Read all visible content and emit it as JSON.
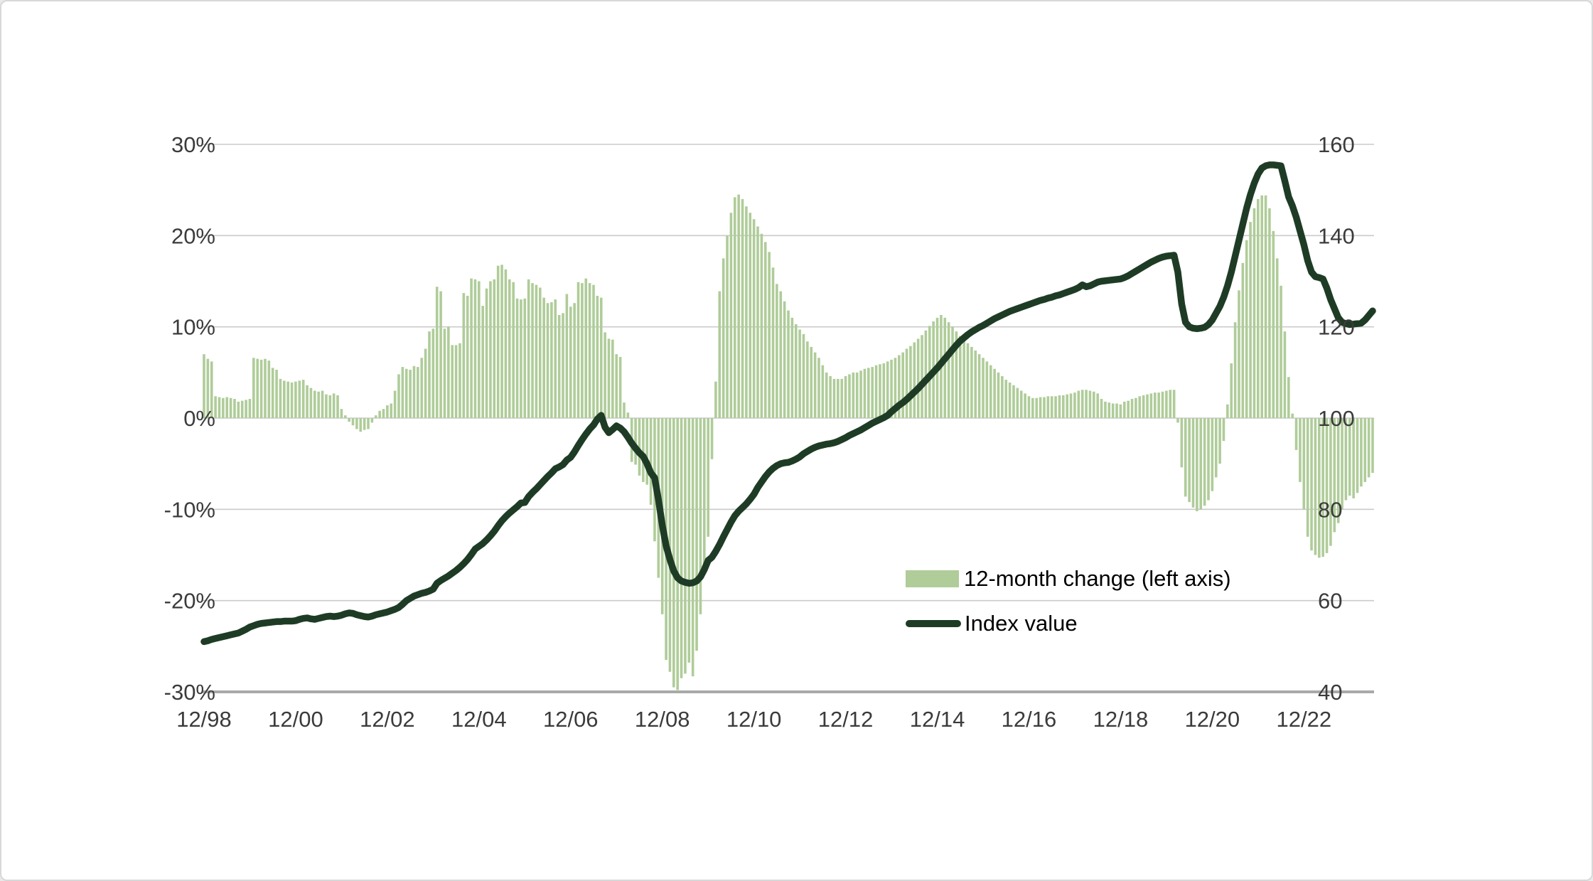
{
  "chart_data": {
    "type": "combo",
    "title": "",
    "x_axis": {
      "frequency": "monthly",
      "start": "1998-12",
      "end": "2024-06",
      "tick_labels": [
        "12/98",
        "12/00",
        "12/02",
        "12/04",
        "12/06",
        "12/08",
        "12/10",
        "12/12",
        "12/14",
        "12/16",
        "12/18",
        "12/20",
        "12/22"
      ]
    },
    "left_axis": {
      "unit": "percent",
      "min": -30,
      "max": 30,
      "tick_labels": [
        "30%",
        "20%",
        "10%",
        "0%",
        "-10%",
        "-20%",
        "-30%"
      ],
      "tick_values": [
        30,
        20,
        10,
        0,
        -10,
        -20,
        -30
      ]
    },
    "right_axis": {
      "unit": "index",
      "min": 40,
      "max": 160,
      "tick_labels": [
        "160",
        "140",
        "120",
        "100",
        "80",
        "60",
        "40"
      ],
      "tick_values": [
        160,
        140,
        120,
        100,
        80,
        60,
        40
      ]
    },
    "grid": "horizontal",
    "legend_position": "inside-lower-right",
    "colors": {
      "bars": "#afcc99",
      "line": "#1e3c25",
      "axis_text": "#3b3b3b",
      "gridline": "#cbcbcb",
      "baseline": "#a9a9a9",
      "background": "#ffffff"
    },
    "series": [
      {
        "name": "12-month change (left axis)",
        "type": "bar",
        "axis": "left",
        "color": "#afcc99",
        "values": [
          7.0,
          6.5,
          6.2,
          2.4,
          2.3,
          2.2,
          2.3,
          2.2,
          2.1,
          1.8,
          1.9,
          2.0,
          2.1,
          6.6,
          6.5,
          6.4,
          6.5,
          6.3,
          5.5,
          5.3,
          4.3,
          4.1,
          4.0,
          3.9,
          4.0,
          4.1,
          4.2,
          3.6,
          3.3,
          3.0,
          2.9,
          3.0,
          2.6,
          2.5,
          2.7,
          2.5,
          1.0,
          0.3,
          -0.4,
          -0.8,
          -1.2,
          -1.5,
          -1.3,
          -1.2,
          -0.5,
          0.3,
          0.8,
          1.0,
          1.4,
          1.6,
          3.0,
          4.8,
          5.6,
          5.4,
          5.3,
          5.7,
          5.6,
          6.6,
          7.6,
          9.5,
          9.8,
          14.4,
          13.9,
          9.8,
          10.0,
          8.0,
          8.0,
          8.2,
          13.7,
          13.4,
          15.3,
          15.2,
          15.0,
          12.3,
          14.2,
          15.0,
          15.2,
          16.7,
          16.8,
          16.3,
          15.2,
          14.9,
          13.1,
          13.0,
          13.1,
          15.2,
          14.8,
          14.6,
          14.3,
          13.2,
          12.6,
          12.7,
          13.0,
          11.3,
          11.5,
          13.6,
          12.2,
          12.6,
          14.9,
          14.8,
          15.3,
          14.8,
          14.6,
          13.4,
          13.2,
          9.4,
          8.7,
          8.6,
          7.0,
          6.7,
          1.7,
          0.6,
          -4.8,
          -5.1,
          -6.3,
          -7.0,
          -7.3,
          -9.5,
          -13.5,
          -17.5,
          -21.5,
          -26.5,
          -27.8,
          -29.5,
          -29.8,
          -28.5,
          -28.0,
          -26.8,
          -28.3,
          -25.5,
          -21.5,
          -17.0,
          -13.0,
          -4.5,
          4.0,
          13.9,
          17.5,
          20.0,
          22.5,
          24.2,
          24.5,
          24.0,
          23.2,
          22.5,
          21.8,
          21.0,
          20.2,
          19.3,
          18.2,
          16.5,
          14.7,
          13.9,
          12.8,
          11.8,
          11.0,
          10.3,
          9.7,
          9.2,
          8.4,
          7.8,
          7.2,
          6.6,
          5.8,
          5.0,
          4.6,
          4.3,
          4.3,
          4.3,
          4.6,
          4.8,
          5.0,
          5.0,
          5.2,
          5.4,
          5.5,
          5.6,
          5.8,
          5.9,
          6.0,
          6.2,
          6.4,
          6.6,
          6.9,
          7.2,
          7.6,
          7.9,
          8.3,
          8.7,
          9.1,
          9.6,
          10.1,
          10.6,
          11.0,
          11.3,
          11.0,
          10.5,
          10.0,
          9.5,
          9.0,
          8.6,
          8.2,
          7.8,
          7.4,
          7.0,
          6.6,
          6.2,
          5.8,
          5.4,
          5.0,
          4.6,
          4.2,
          3.9,
          3.6,
          3.3,
          3.0,
          2.7,
          2.4,
          2.2,
          2.2,
          2.3,
          2.3,
          2.4,
          2.4,
          2.4,
          2.5,
          2.5,
          2.6,
          2.7,
          2.8,
          3.0,
          3.1,
          3.1,
          3.0,
          2.9,
          2.7,
          2.1,
          1.8,
          1.7,
          1.6,
          1.6,
          1.5,
          1.8,
          1.9,
          2.1,
          2.2,
          2.4,
          2.5,
          2.6,
          2.7,
          2.8,
          2.8,
          2.9,
          3.0,
          3.1,
          3.1,
          -0.5,
          -5.4,
          -8.6,
          -9.2,
          -9.8,
          -10.2,
          -10.0,
          -9.6,
          -9.0,
          -8.0,
          -6.5,
          -5.0,
          -2.5,
          1.5,
          6.0,
          10.5,
          14.0,
          17.0,
          19.5,
          21.5,
          23.0,
          24.0,
          24.4,
          24.4,
          23.0,
          20.5,
          17.5,
          14.5,
          9.5,
          4.5,
          0.5,
          -3.5,
          -7.0,
          -10.0,
          -13.0,
          -14.5,
          -15.0,
          -15.3,
          -15.2,
          -14.8,
          -14.0,
          -12.5,
          -11.5,
          -10.0,
          -9.0,
          -8.5,
          -8.8,
          -8.2,
          -7.5,
          -7.0,
          -6.5,
          -6.0
        ]
      },
      {
        "name": "Index value",
        "type": "line",
        "axis": "right",
        "color": "#1e3c25",
        "values": [
          51.0,
          51.2,
          51.5,
          51.7,
          51.9,
          52.1,
          52.3,
          52.5,
          52.7,
          52.9,
          53.3,
          53.7,
          54.2,
          54.5,
          54.8,
          55.0,
          55.1,
          55.2,
          55.3,
          55.4,
          55.4,
          55.5,
          55.5,
          55.5,
          55.6,
          55.9,
          56.1,
          56.2,
          56.0,
          55.9,
          56.1,
          56.3,
          56.5,
          56.6,
          56.5,
          56.6,
          56.8,
          57.1,
          57.3,
          57.2,
          56.9,
          56.7,
          56.5,
          56.4,
          56.6,
          56.9,
          57.1,
          57.3,
          57.5,
          57.8,
          58.1,
          58.5,
          59.2,
          60.0,
          60.5,
          61.0,
          61.3,
          61.6,
          61.8,
          62.1,
          62.5,
          63.8,
          64.4,
          64.9,
          65.4,
          66.0,
          66.6,
          67.3,
          68.1,
          69.0,
          70.1,
          71.3,
          71.9,
          72.5,
          73.3,
          74.2,
          75.2,
          76.4,
          77.5,
          78.4,
          79.2,
          79.9,
          80.6,
          81.4,
          81.5,
          82.8,
          83.7,
          84.5,
          85.4,
          86.3,
          87.2,
          88.0,
          88.9,
          89.3,
          89.8,
          90.8,
          91.4,
          92.6,
          94.0,
          95.3,
          96.5,
          97.6,
          98.5,
          99.8,
          100.6,
          98.0,
          96.8,
          97.5,
          98.3,
          97.8,
          97.0,
          95.8,
          94.5,
          93.4,
          92.4,
          91.6,
          90.0,
          88.0,
          86.9,
          82.1,
          76.5,
          72.0,
          69.0,
          66.5,
          65.0,
          64.3,
          64.0,
          63.8,
          63.9,
          64.3,
          65.2,
          66.8,
          68.8,
          69.5,
          70.8,
          72.3,
          74.0,
          75.6,
          77.2,
          78.6,
          79.6,
          80.4,
          81.2,
          82.2,
          83.3,
          84.8,
          86.0,
          87.2,
          88.2,
          89.0,
          89.6,
          90.0,
          90.2,
          90.3,
          90.6,
          91.0,
          91.5,
          92.2,
          92.7,
          93.2,
          93.6,
          93.9,
          94.1,
          94.3,
          94.4,
          94.6,
          94.9,
          95.3,
          95.7,
          96.2,
          96.6,
          97.0,
          97.4,
          97.9,
          98.4,
          98.9,
          99.3,
          99.7,
          100.1,
          100.6,
          101.4,
          102.1,
          102.8,
          103.4,
          104.1,
          104.9,
          105.7,
          106.5,
          107.4,
          108.3,
          109.2,
          110.1,
          111.0,
          112.0,
          113.0,
          114.0,
          115.0,
          116.0,
          116.9,
          117.6,
          118.3,
          118.9,
          119.4,
          119.9,
          120.3,
          120.8,
          121.3,
          121.8,
          122.2,
          122.6,
          123.0,
          123.4,
          123.7,
          124.0,
          124.3,
          124.6,
          124.9,
          125.2,
          125.5,
          125.8,
          126.0,
          126.3,
          126.5,
          126.8,
          127.0,
          127.3,
          127.6,
          127.9,
          128.2,
          128.6,
          129.2,
          128.8,
          129.0,
          129.4,
          129.8,
          130.0,
          130.1,
          130.2,
          130.3,
          130.4,
          130.5,
          130.8,
          131.2,
          131.7,
          132.2,
          132.7,
          133.2,
          133.7,
          134.2,
          134.6,
          135.0,
          135.3,
          135.5,
          135.6,
          135.7,
          132.0,
          125.0,
          121.0,
          120.0,
          119.7,
          119.6,
          119.7,
          119.9,
          120.5,
          121.5,
          123.0,
          124.5,
          126.5,
          129.0,
          132.0,
          135.5,
          139.0,
          142.5,
          146.0,
          149.0,
          151.5,
          153.5,
          154.8,
          155.3,
          155.5,
          155.5,
          155.4,
          155.3,
          152.0,
          148.5,
          146.5,
          144.0,
          141.0,
          138.0,
          134.5,
          132.0,
          131.0,
          130.8,
          130.5,
          128.5,
          126.0,
          124.0,
          122.0,
          121.0,
          120.7,
          120.5,
          120.6,
          120.7,
          120.8,
          121.5,
          122.5,
          123.5
        ]
      }
    ]
  },
  "legend": {
    "bars_label": "12-month change (left axis)",
    "line_label": "Index value"
  }
}
